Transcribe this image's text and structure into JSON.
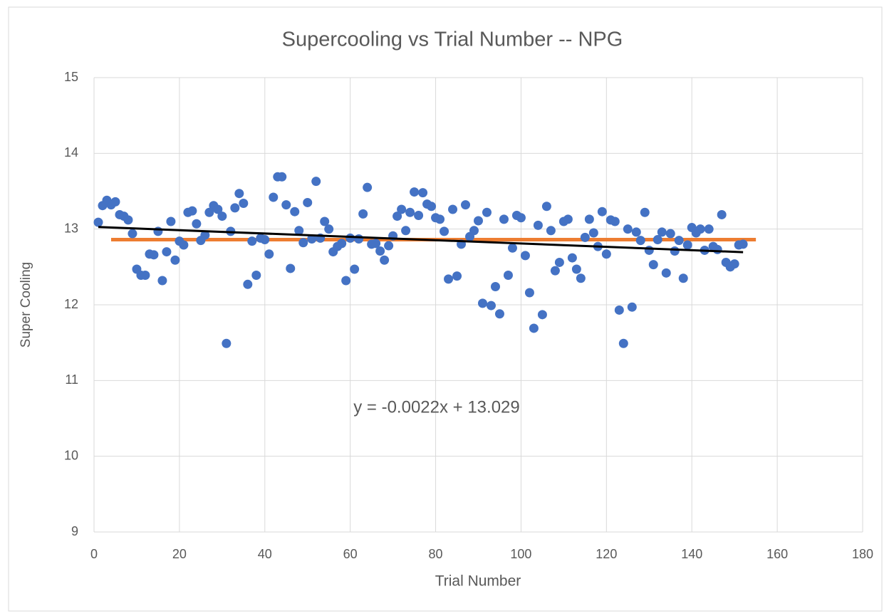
{
  "chart_data": {
    "type": "scatter",
    "title": "Supercooling vs Trial Number -- NPG",
    "x_label": "Trial Number",
    "y_label": "Super Cooling",
    "annotation": "y = -0.0022x + 13.029",
    "color": "#4472c4",
    "xlim": [
      0,
      180
    ],
    "xticks": [
      0,
      20,
      40,
      60,
      80,
      100,
      120,
      140,
      160,
      180
    ],
    "ylim": [
      9,
      15
    ],
    "yticks": [
      9,
      10,
      11,
      12,
      13,
      14,
      15
    ],
    "grid": true,
    "x": [
      1,
      2,
      3,
      4,
      5,
      6,
      7,
      8,
      9,
      10,
      11,
      12,
      13,
      14,
      15,
      16,
      17,
      18,
      19,
      20,
      21,
      22,
      23,
      24,
      25,
      26,
      27,
      28,
      29,
      30,
      31,
      32,
      33,
      34,
      35,
      36,
      37,
      38,
      39,
      40,
      41,
      42,
      43,
      44,
      45,
      46,
      47,
      48,
      49,
      50,
      51,
      52,
      53,
      54,
      55,
      56,
      57,
      58,
      59,
      60,
      61,
      62,
      63,
      64,
      65,
      66,
      67,
      68,
      69,
      70,
      71,
      72,
      73,
      74,
      75,
      76,
      77,
      78,
      79,
      80,
      81,
      82,
      83,
      84,
      85,
      86,
      87,
      88,
      89,
      90,
      91,
      92,
      93,
      94,
      95,
      96,
      97,
      98,
      99,
      100,
      101,
      102,
      103,
      104,
      105,
      106,
      107,
      108,
      109,
      110,
      111,
      112,
      113,
      114,
      115,
      116,
      117,
      118,
      119,
      120,
      121,
      122,
      123,
      124,
      125,
      126,
      127,
      128,
      129,
      130,
      131,
      132,
      133,
      134,
      135,
      136,
      137,
      138,
      139,
      140,
      141,
      142,
      143,
      144,
      145,
      146,
      147,
      148,
      149,
      150,
      151,
      152
    ],
    "values": [
      13.09,
      13.31,
      13.38,
      13.32,
      13.36,
      13.19,
      13.17,
      13.12,
      12.94,
      12.47,
      12.39,
      12.39,
      12.67,
      12.66,
      12.97,
      12.32,
      12.7,
      13.1,
      12.59,
      12.84,
      12.79,
      13.22,
      13.24,
      13.07,
      12.85,
      12.92,
      13.22,
      13.31,
      13.26,
      13.17,
      11.49,
      12.97,
      13.28,
      13.47,
      13.34,
      12.27,
      12.84,
      12.39,
      12.88,
      12.86,
      12.67,
      13.42,
      13.69,
      13.69,
      13.32,
      12.48,
      13.23,
      12.98,
      12.82,
      13.35,
      12.87,
      13.63,
      12.88,
      13.1,
      13.0,
      12.7,
      12.77,
      12.81,
      12.32,
      12.88,
      12.47,
      12.87,
      13.2,
      13.55,
      12.8,
      12.81,
      12.71,
      12.59,
      12.78,
      12.91,
      13.17,
      13.26,
      12.98,
      13.22,
      13.49,
      13.18,
      13.48,
      13.33,
      13.3,
      13.15,
      13.13,
      12.97,
      12.34,
      13.26,
      12.38,
      12.8,
      13.32,
      12.9,
      12.98,
      13.11,
      12.02,
      13.22,
      11.99,
      12.24,
      11.88,
      13.13,
      12.39,
      12.75,
      13.18,
      13.15,
      12.65,
      12.16,
      11.69,
      13.05,
      11.87,
      13.3,
      12.98,
      12.45,
      12.56,
      13.1,
      13.13,
      12.62,
      12.47,
      12.35,
      12.89,
      13.13,
      12.95,
      12.77,
      13.23,
      12.67,
      13.12,
      13.1,
      11.93,
      11.49,
      13.0,
      11.97,
      12.96,
      12.85,
      13.22,
      12.72,
      12.53,
      12.86,
      12.96,
      12.42,
      12.94,
      12.71,
      12.85,
      12.35,
      12.79,
      13.02,
      12.95,
      13.0,
      12.72,
      13.0,
      12.77,
      12.73,
      13.19,
      12.56,
      12.5,
      12.54,
      12.79,
      12.8
    ],
    "trendline": {
      "color": "#000000",
      "x": [
        1,
        152
      ],
      "y": [
        13.027,
        12.695
      ]
    },
    "average_line": {
      "color": "#ed7d31",
      "x": [
        4,
        155
      ],
      "y": [
        12.86,
        12.86
      ]
    }
  }
}
